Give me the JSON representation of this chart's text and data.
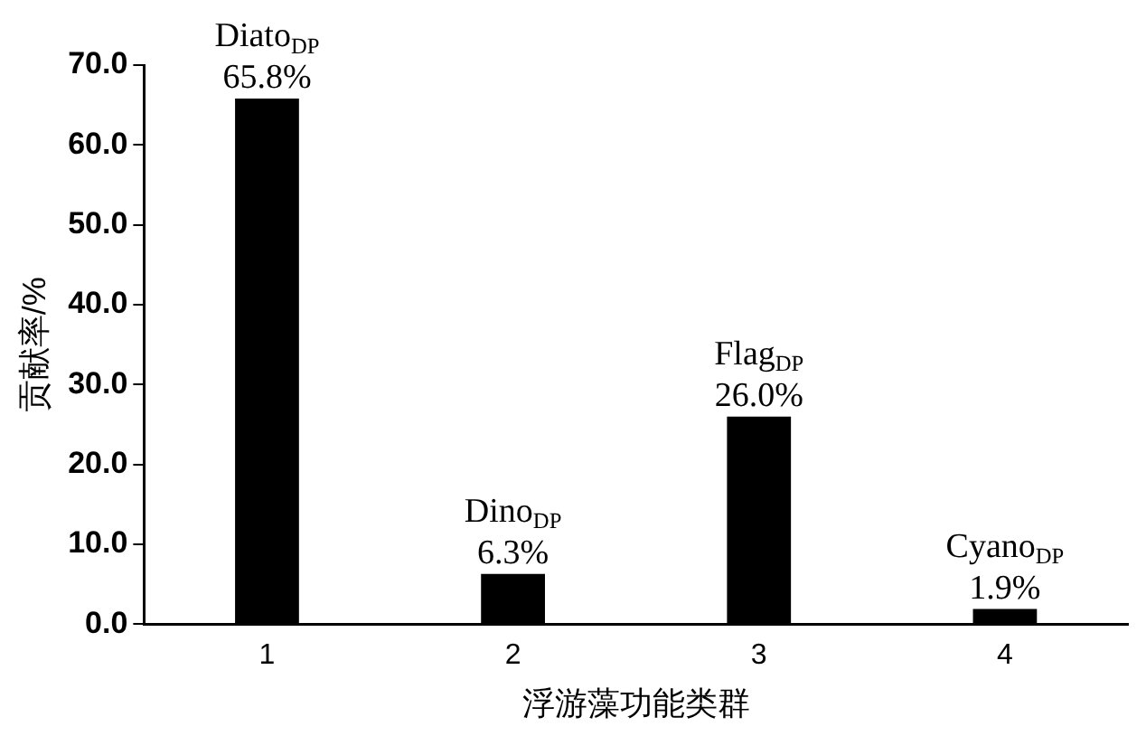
{
  "chart_data": {
    "type": "bar",
    "xlabel": "浮游藻功能类群",
    "ylabel": "贡献率/%",
    "categories": [
      "1",
      "2",
      "3",
      "4"
    ],
    "values": [
      65.8,
      6.3,
      26.0,
      1.9
    ],
    "color": "#000000",
    "value_labels": [
      "65.8%",
      "6.3%",
      "26.0%",
      "1.9%"
    ],
    "annotations": [
      {
        "text": "Diato$_{DP}$",
        "x": "1",
        "y": 65.8
      },
      {
        "text": "Dino$_{DP}$",
        "x": "2",
        "y": 6.3
      },
      {
        "text": "Flag$_{DP}$",
        "x": "3",
        "y": 26.0
      },
      {
        "text": "Cyano$_{DP}$",
        "x": "4",
        "y": 1.9
      }
    ],
    "ylim": [
      0,
      70
    ],
    "yticks": [
      {
        "value": 0,
        "label": "0.0"
      },
      {
        "value": 10,
        "label": "10.0"
      },
      {
        "value": 20,
        "label": "20.0"
      },
      {
        "value": 30,
        "label": "30.0"
      },
      {
        "value": 40,
        "label": "40.0"
      },
      {
        "value": 50,
        "label": "50.0"
      },
      {
        "value": 60,
        "label": "60.0"
      },
      {
        "value": 70,
        "label": "70.0"
      }
    ],
    "grid": false,
    "legend": false
  }
}
